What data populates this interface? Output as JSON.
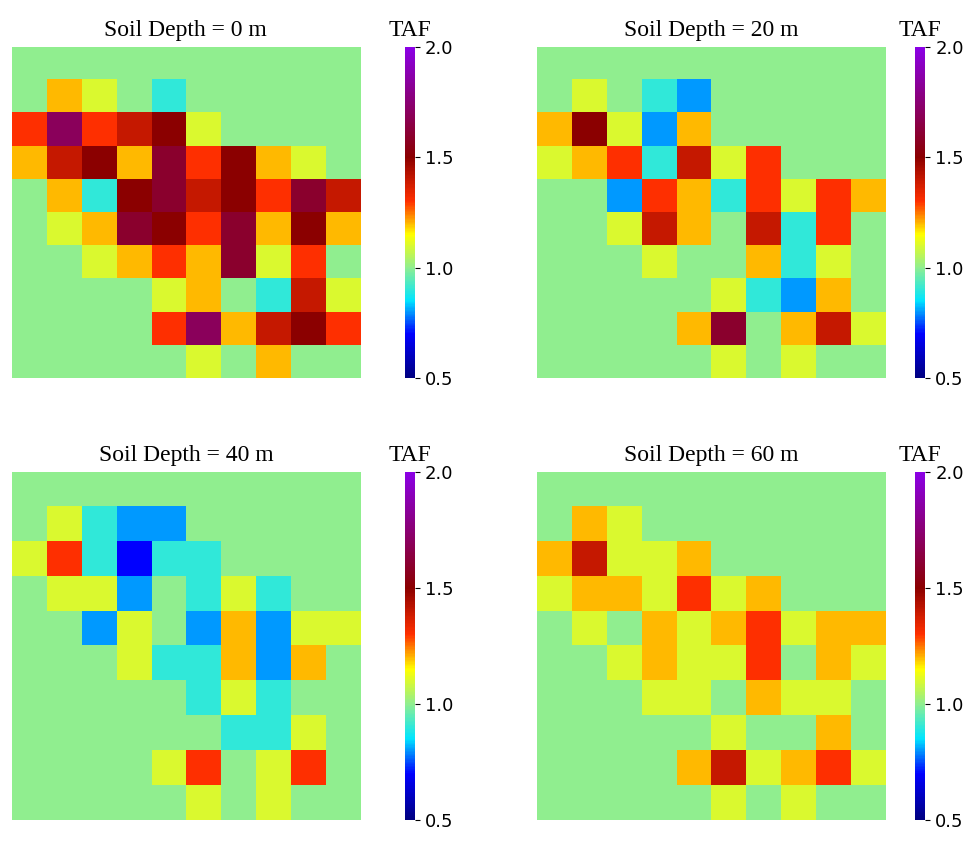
{
  "chart_data": [
    {
      "type": "heatmap",
      "title": "Soil Depth = 0 m",
      "colorbar_label": "TAF",
      "colorbar_range": [
        0.5,
        2.0
      ],
      "colorbar_ticks": [
        {
          "value": 0.5,
          "label": "0.5"
        },
        {
          "value": 1.0,
          "label": "1.0"
        },
        {
          "value": 1.5,
          "label": "1.5"
        },
        {
          "value": 2.0,
          "label": "2.0"
        }
      ],
      "tick_labels": false,
      "cells": [
        [
          1.0,
          1.0,
          1.0,
          1.0,
          1.0,
          1.0,
          1.0,
          1.0,
          1.0,
          1.0
        ],
        [
          1.0,
          1.2,
          1.1,
          1.0,
          0.9,
          1.0,
          1.0,
          1.0,
          1.0,
          1.0
        ],
        [
          1.3,
          1.7,
          1.3,
          1.4,
          1.5,
          1.1,
          1.0,
          1.0,
          1.0,
          1.0
        ],
        [
          1.2,
          1.4,
          1.5,
          1.2,
          1.6,
          1.3,
          1.5,
          1.2,
          1.1,
          1.0
        ],
        [
          1.0,
          1.2,
          0.9,
          1.5,
          1.6,
          1.4,
          1.5,
          1.3,
          1.6,
          1.4
        ],
        [
          1.0,
          1.1,
          1.2,
          1.6,
          1.5,
          1.3,
          1.6,
          1.2,
          1.5,
          1.2
        ],
        [
          1.0,
          1.0,
          1.1,
          1.2,
          1.3,
          1.2,
          1.6,
          1.1,
          1.3,
          1.0
        ],
        [
          1.0,
          1.0,
          1.0,
          1.0,
          1.1,
          1.2,
          1.0,
          0.9,
          1.4,
          1.1
        ],
        [
          1.0,
          1.0,
          1.0,
          1.0,
          1.3,
          1.7,
          1.2,
          1.4,
          1.5,
          1.3
        ],
        [
          1.0,
          1.0,
          1.0,
          1.0,
          1.0,
          1.1,
          1.0,
          1.2,
          1.0,
          1.0
        ]
      ]
    },
    {
      "type": "heatmap",
      "title": "Soil Depth = 20 m",
      "colorbar_label": "TAF",
      "colorbar_range": [
        0.5,
        2.0
      ],
      "colorbar_ticks": [
        {
          "value": 0.5,
          "label": "0.5"
        },
        {
          "value": 1.0,
          "label": "1.0"
        },
        {
          "value": 1.5,
          "label": "1.5"
        },
        {
          "value": 2.0,
          "label": "2.0"
        }
      ],
      "tick_labels": false,
      "cells": [
        [
          1.0,
          1.0,
          1.0,
          1.0,
          1.0,
          1.0,
          1.0,
          1.0,
          1.0,
          1.0
        ],
        [
          1.0,
          1.1,
          1.0,
          0.9,
          0.8,
          1.0,
          1.0,
          1.0,
          1.0,
          1.0
        ],
        [
          1.2,
          1.5,
          1.1,
          0.8,
          1.2,
          1.0,
          1.0,
          1.0,
          1.0,
          1.0
        ],
        [
          1.1,
          1.2,
          1.3,
          0.9,
          1.4,
          1.1,
          1.3,
          1.0,
          1.0,
          1.0
        ],
        [
          1.0,
          1.0,
          0.8,
          1.3,
          1.2,
          0.9,
          1.3,
          1.1,
          1.3,
          1.2
        ],
        [
          1.0,
          1.0,
          1.1,
          1.4,
          1.2,
          1.0,
          1.4,
          0.9,
          1.3,
          1.0
        ],
        [
          1.0,
          1.0,
          1.0,
          1.1,
          1.0,
          1.0,
          1.2,
          0.9,
          1.1,
          1.0
        ],
        [
          1.0,
          1.0,
          1.0,
          1.0,
          1.0,
          1.1,
          0.9,
          0.8,
          1.2,
          1.0
        ],
        [
          1.0,
          1.0,
          1.0,
          1.0,
          1.2,
          1.6,
          1.0,
          1.2,
          1.4,
          1.1
        ],
        [
          1.0,
          1.0,
          1.0,
          1.0,
          1.0,
          1.1,
          1.0,
          1.1,
          1.0,
          1.0
        ]
      ]
    },
    {
      "type": "heatmap",
      "title": "Soil Depth = 40 m",
      "colorbar_label": "TAF",
      "colorbar_range": [
        0.5,
        2.0
      ],
      "colorbar_ticks": [
        {
          "value": 0.5,
          "label": "0.5"
        },
        {
          "value": 1.0,
          "label": "1.0"
        },
        {
          "value": 1.5,
          "label": "1.5"
        },
        {
          "value": 2.0,
          "label": "2.0"
        }
      ],
      "tick_labels": false,
      "cells": [
        [
          1.0,
          1.0,
          1.0,
          1.0,
          1.0,
          1.0,
          1.0,
          1.0,
          1.0,
          1.0
        ],
        [
          1.0,
          1.1,
          0.9,
          0.8,
          0.8,
          1.0,
          1.0,
          1.0,
          1.0,
          1.0
        ],
        [
          1.1,
          1.3,
          0.9,
          0.7,
          0.9,
          0.9,
          1.0,
          1.0,
          1.0,
          1.0
        ],
        [
          1.0,
          1.1,
          1.1,
          0.8,
          1.0,
          0.9,
          1.1,
          0.9,
          1.0,
          1.0
        ],
        [
          1.0,
          1.0,
          0.8,
          1.1,
          1.0,
          0.8,
          1.2,
          0.8,
          1.1,
          1.1
        ],
        [
          1.0,
          1.0,
          1.0,
          1.1,
          0.9,
          0.9,
          1.2,
          0.8,
          1.2,
          1.0
        ],
        [
          1.0,
          1.0,
          1.0,
          1.0,
          1.0,
          0.9,
          1.1,
          0.9,
          1.0,
          1.0
        ],
        [
          1.0,
          1.0,
          1.0,
          1.0,
          1.0,
          1.0,
          0.9,
          0.9,
          1.1,
          1.0
        ],
        [
          1.0,
          1.0,
          1.0,
          1.0,
          1.1,
          1.3,
          1.0,
          1.1,
          1.3,
          1.0
        ],
        [
          1.0,
          1.0,
          1.0,
          1.0,
          1.0,
          1.1,
          1.0,
          1.1,
          1.0,
          1.0
        ]
      ]
    },
    {
      "type": "heatmap",
      "title": "Soil Depth = 60 m",
      "colorbar_label": "TAF",
      "colorbar_range": [
        0.5,
        2.0
      ],
      "colorbar_ticks": [
        {
          "value": 0.5,
          "label": "0.5"
        },
        {
          "value": 1.0,
          "label": "1.0"
        },
        {
          "value": 1.5,
          "label": "1.5"
        },
        {
          "value": 2.0,
          "label": "2.0"
        }
      ],
      "tick_labels": false,
      "cells": [
        [
          1.0,
          1.0,
          1.0,
          1.0,
          1.0,
          1.0,
          1.0,
          1.0,
          1.0,
          1.0
        ],
        [
          1.0,
          1.2,
          1.1,
          1.0,
          1.0,
          1.0,
          1.0,
          1.0,
          1.0,
          1.0
        ],
        [
          1.2,
          1.4,
          1.1,
          1.1,
          1.2,
          1.0,
          1.0,
          1.0,
          1.0,
          1.0
        ],
        [
          1.1,
          1.2,
          1.2,
          1.1,
          1.3,
          1.1,
          1.2,
          1.0,
          1.0,
          1.0
        ],
        [
          1.0,
          1.1,
          1.0,
          1.2,
          1.1,
          1.2,
          1.3,
          1.1,
          1.2,
          1.2
        ],
        [
          1.0,
          1.0,
          1.1,
          1.2,
          1.1,
          1.1,
          1.3,
          1.0,
          1.2,
          1.1
        ],
        [
          1.0,
          1.0,
          1.0,
          1.1,
          1.1,
          1.0,
          1.2,
          1.1,
          1.1,
          1.0
        ],
        [
          1.0,
          1.0,
          1.0,
          1.0,
          1.0,
          1.1,
          1.0,
          1.0,
          1.2,
          1.0
        ],
        [
          1.0,
          1.0,
          1.0,
          1.0,
          1.2,
          1.4,
          1.1,
          1.2,
          1.3,
          1.1
        ],
        [
          1.0,
          1.0,
          1.0,
          1.0,
          1.0,
          1.1,
          1.0,
          1.1,
          1.0,
          1.0
        ]
      ]
    }
  ]
}
